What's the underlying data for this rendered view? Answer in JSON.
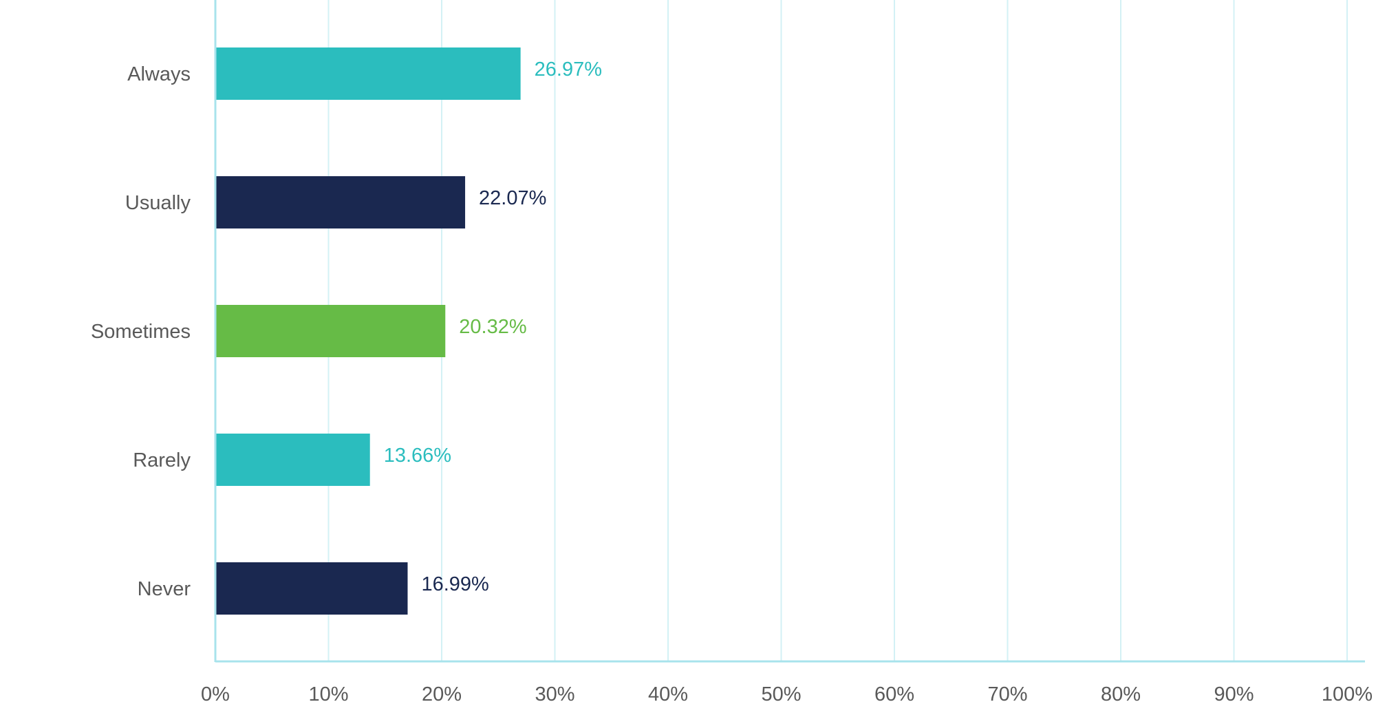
{
  "chart_data": {
    "type": "bar",
    "orientation": "horizontal",
    "title": "",
    "xlabel": "",
    "ylabel": "",
    "categories": [
      "Always",
      "Usually",
      "Sometimes",
      "Rarely",
      "Never"
    ],
    "values": [
      26.97,
      22.07,
      20.32,
      13.66,
      16.99
    ],
    "value_labels": [
      "26.97%",
      "22.07%",
      "20.32%",
      "13.66%",
      "16.99%"
    ],
    "bar_colors": [
      "#2bbdbe",
      "#1a2850",
      "#66bb46",
      "#2bbdbe",
      "#1a2850"
    ],
    "xlim": [
      0,
      100
    ],
    "x_ticks": [
      0,
      10,
      20,
      30,
      40,
      50,
      60,
      70,
      80,
      90,
      100
    ],
    "x_tick_labels": [
      "0%",
      "10%",
      "20%",
      "30%",
      "40%",
      "50%",
      "60%",
      "70%",
      "80%",
      "90%",
      "100%"
    ],
    "grid": true,
    "grid_color": "#d3f1f5",
    "axis_color": "#a8e3ec",
    "label_color": "#595959"
  }
}
